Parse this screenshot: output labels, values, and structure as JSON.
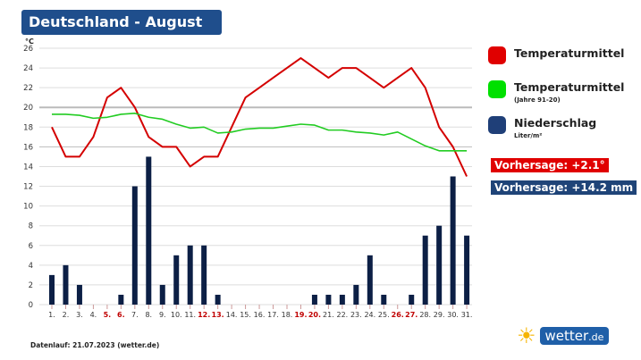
{
  "title": "Deutschland - August",
  "footer": "Datenlauf: 21.07.2023 (wetter.de)",
  "logo": {
    "text": "wetter",
    "suffix": ".de"
  },
  "legend": [
    {
      "label": "Temperaturmittel",
      "sub": "",
      "color": "#e00000"
    },
    {
      "label": "Temperaturmittel",
      "sub": "(Jahre 91-20)",
      "color": "#00e000"
    },
    {
      "label": "Niederschlag",
      "sub": "Liter/m²",
      "color": "#1f3f78"
    }
  ],
  "badges": {
    "temp": "Vorhersage: +2.1°",
    "precip": "Vorhersage: +14.2 mm"
  },
  "colors": {
    "temp": "#d40000",
    "normal": "#22cc22",
    "precip": "#0c1f45",
    "weekend": "#c00000"
  },
  "chart_data": {
    "type": "bar+line",
    "title": "Deutschland - August",
    "ylabel": "°C",
    "ylim": [
      0,
      26
    ],
    "yticks": [
      0,
      2,
      4,
      6,
      8,
      10,
      12,
      14,
      16,
      18,
      20,
      22,
      24,
      26
    ],
    "categories": [
      "1.",
      "2.",
      "3.",
      "4.",
      "5.",
      "6.",
      "7.",
      "8.",
      "9.",
      "10.",
      "11.",
      "12.",
      "13.",
      "14.",
      "15.",
      "16.",
      "17.",
      "18.",
      "19.",
      "20.",
      "21.",
      "22.",
      "23.",
      "24.",
      "25.",
      "26.",
      "27.",
      "28.",
      "29.",
      "30.",
      "31."
    ],
    "weekend": [
      5,
      6,
      12,
      13,
      19,
      20,
      26,
      27
    ],
    "series": [
      {
        "name": "Niederschlag (Liter/m²)",
        "type": "bar",
        "values": [
          3,
          4,
          2,
          0,
          0,
          1,
          12,
          15,
          2,
          5,
          6,
          6,
          1,
          0,
          0,
          0,
          0,
          0,
          0,
          1,
          1,
          1,
          2,
          5,
          1,
          0,
          1,
          7,
          8,
          13,
          7
        ]
      },
      {
        "name": "Temperaturmittel",
        "type": "line",
        "values": [
          18,
          15,
          15,
          17,
          21,
          22,
          20,
          17,
          16,
          16,
          14,
          15,
          15,
          18,
          21,
          22,
          23,
          24,
          25,
          24,
          23,
          24,
          24,
          23,
          22,
          23,
          24,
          22,
          18,
          16,
          13
        ]
      },
      {
        "name": "Temperaturmittel (Jahre 91-20)",
        "type": "line",
        "values": [
          19.3,
          19.3,
          19.2,
          18.9,
          19.0,
          19.3,
          19.4,
          19.0,
          18.8,
          18.3,
          17.9,
          18.0,
          17.4,
          17.5,
          17.8,
          17.9,
          17.9,
          18.1,
          18.3,
          18.2,
          17.7,
          17.7,
          17.5,
          17.4,
          17.2,
          17.5,
          16.8,
          16.1,
          15.6,
          15.6,
          15.6
        ]
      }
    ]
  }
}
